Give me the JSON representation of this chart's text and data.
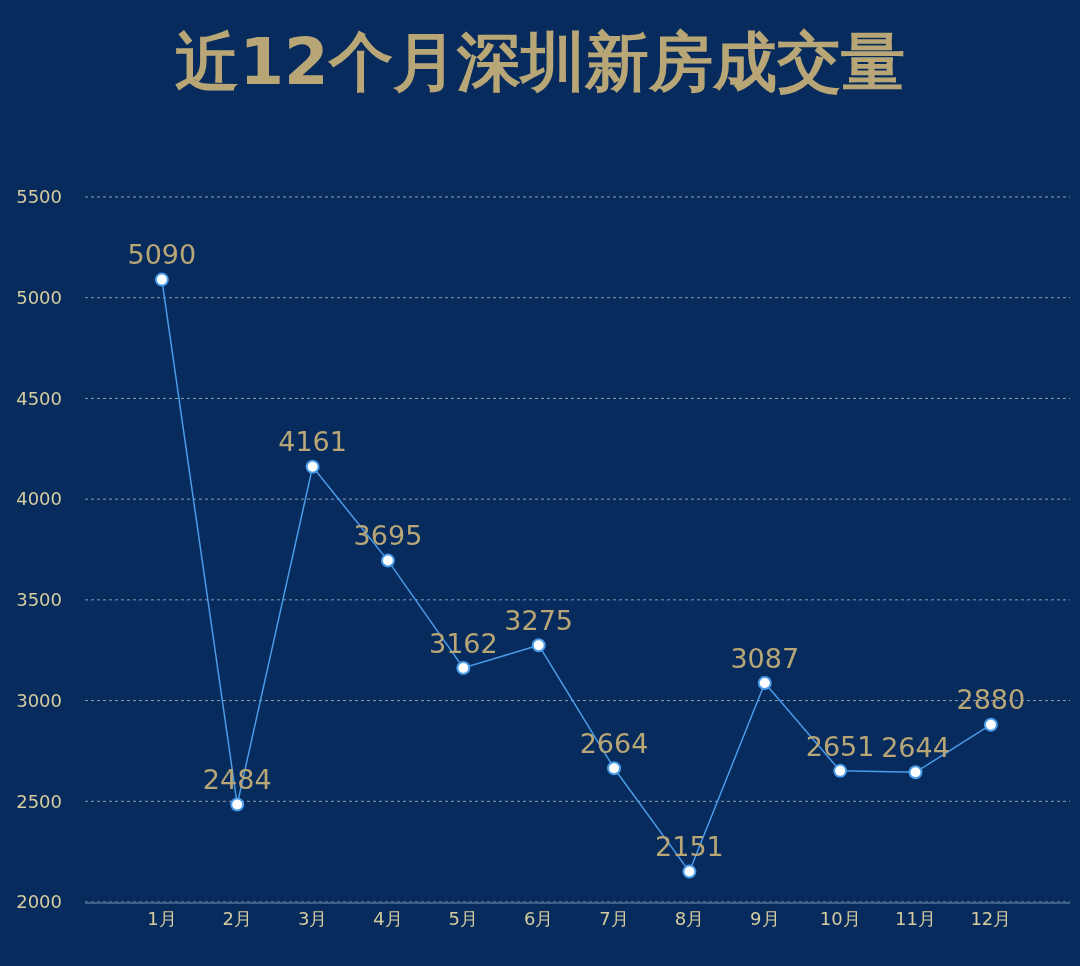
{
  "chart_data": {
    "type": "line",
    "title": "近12个月深圳新房成交量",
    "categories": [
      "1月",
      "2月",
      "3月",
      "4月",
      "5月",
      "6月",
      "7月",
      "8月",
      "9月",
      "10月",
      "11月",
      "12月"
    ],
    "series": [
      {
        "color": "#4a9be8",
        "values": [
          5090,
          2484,
          4161,
          3695,
          3162,
          3275,
          2664,
          2151,
          3087,
          2651,
          2644,
          2880
        ]
      }
    ],
    "ylim": [
      2000,
      5500
    ],
    "yticks": [
      2000,
      2500,
      3000,
      3500,
      4000,
      4500,
      5000,
      5500
    ],
    "grid": "y",
    "marker": "circle",
    "line_style": "solid",
    "data_labels": true
  }
}
